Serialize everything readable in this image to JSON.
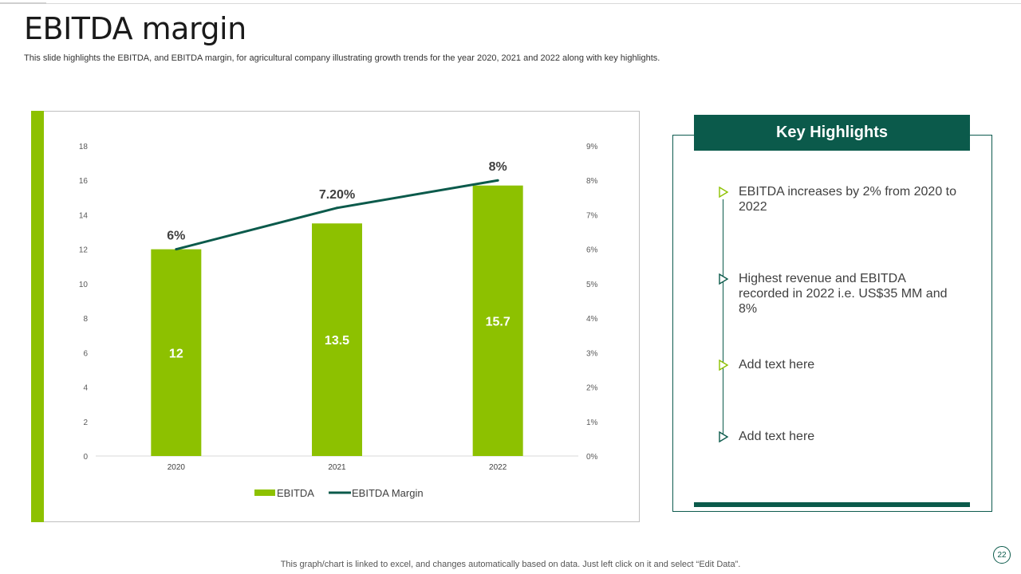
{
  "slide": {
    "title": "EBITDA margin",
    "subtitle": "This slide highlights the EBITDA, and EBITDA  margin, for agricultural company illustrating growth trends for the year 2020, 2021 and 2022 along with key highlights.",
    "footnote": "This graph/chart is linked to excel,  and changes automatically based on data. Just left click on it and select “Edit Data”.",
    "page_number": "22"
  },
  "colors": {
    "bar": "#8dc100",
    "line": "#0b5a4b",
    "accent_dark": "#0b5a4b"
  },
  "highlights": {
    "header": "Key Highlights",
    "items": [
      {
        "text": "EBITDA increases by 2% from 2020 to 2022",
        "icon": "triangle-right-outline-icon",
        "color": "#8dc100"
      },
      {
        "text": "Highest revenue  and EBITDA recorded in 2022 i.e. US$35 MM and 8%",
        "icon": "triangle-right-outline-icon",
        "color": "#0b5a4b"
      },
      {
        "text": "Add text here",
        "icon": "triangle-right-outline-icon",
        "color": "#8dc100"
      },
      {
        "text": "Add text here",
        "icon": "triangle-right-outline-icon",
        "color": "#0b5a4b"
      }
    ]
  },
  "chart_data": {
    "type": "bar",
    "categories": [
      "2020",
      "2021",
      "2022"
    ],
    "series": [
      {
        "name": "EBITDA",
        "type": "bar",
        "axis": "left",
        "values": [
          12,
          13.5,
          15.7
        ],
        "labels": [
          "12",
          "13.5",
          "15.7"
        ]
      },
      {
        "name": "EBITDA Margin",
        "type": "line",
        "axis": "right",
        "values": [
          6,
          7.2,
          8
        ],
        "labels": [
          "6%",
          "7.20%",
          "8%"
        ]
      }
    ],
    "y_left": {
      "min": 0,
      "max": 18,
      "ticks": [
        "0",
        "2",
        "4",
        "6",
        "8",
        "10",
        "12",
        "14",
        "16",
        "18"
      ]
    },
    "y_right": {
      "min": 0,
      "max": 9,
      "ticks": [
        "0%",
        "1%",
        "2%",
        "3%",
        "4%",
        "5%",
        "6%",
        "7%",
        "8%",
        "9%"
      ]
    },
    "legend": [
      "EBITDA",
      "EBITDA Margin"
    ],
    "legend_position": "bottom",
    "grid": false
  }
}
